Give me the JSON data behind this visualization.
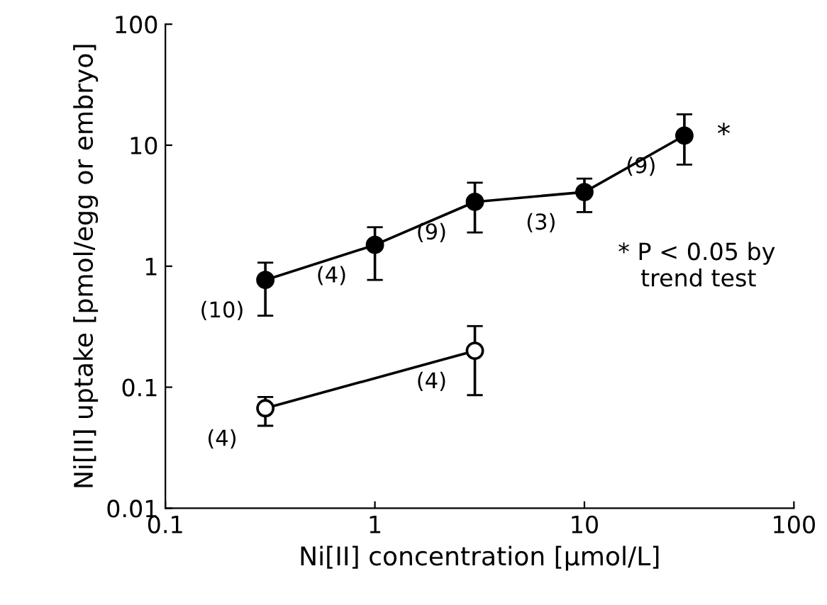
{
  "chart_data": {
    "type": "line",
    "xlabel": "Ni[II] concentration [µmol/L]",
    "ylabel": "Ni[II] uptake [pmol/egg or embryo]",
    "log": "xy",
    "xlim": [
      0.1,
      100
    ],
    "ylim": [
      0.01,
      100
    ],
    "xticks": [
      {
        "value": 0.1,
        "label": "0.1"
      },
      {
        "value": 1,
        "label": "1"
      },
      {
        "value": 10,
        "label": "10"
      },
      {
        "value": 100,
        "label": "100"
      }
    ],
    "yticks": [
      {
        "value": 0.01,
        "label": "0.01"
      },
      {
        "value": 0.1,
        "label": "0.1"
      },
      {
        "value": 1,
        "label": "1"
      },
      {
        "value": 10,
        "label": "10"
      },
      {
        "value": 100,
        "label": "100"
      }
    ],
    "grid": false,
    "legend": false,
    "marker": "circle",
    "line_style": "solid",
    "series": [
      {
        "color": "#000000",
        "x": [
          0.3,
          1,
          3,
          10,
          30
        ],
        "values": [
          0.77,
          1.5,
          3.4,
          4.1,
          12
        ],
        "errors": [
          [
            0.39,
            1.07
          ],
          [
            0.77,
            2.1
          ],
          [
            1.9,
            4.9
          ],
          [
            2.8,
            5.3
          ],
          [
            6.9,
            18
          ]
        ]
      },
      {
        "color": "#ffffff",
        "x": [
          0.3,
          3
        ],
        "values": [
          0.067,
          0.2
        ],
        "errors": [
          [
            0.048,
            0.083
          ],
          [
            0.086,
            0.32
          ]
        ]
      }
    ],
    "annotations": [
      {
        "text": "(10)",
        "x": 0.3,
        "y": 0.77
      },
      {
        "text": "(4)",
        "x": 1,
        "y": 1.5
      },
      {
        "text": "(9)",
        "x": 3,
        "y": 3.4
      },
      {
        "text": "(3)",
        "x": 10,
        "y": 4.1
      },
      {
        "text": "(9)",
        "x": 30,
        "y": 12
      },
      {
        "text": "*",
        "x": 30,
        "y": 12
      },
      {
        "text": "(4)",
        "x": 0.3,
        "y": 0.067
      },
      {
        "text": "(4)",
        "x": 3,
        "y": 0.2
      },
      "* P < 0.05 by\n   trend test"
    ]
  }
}
